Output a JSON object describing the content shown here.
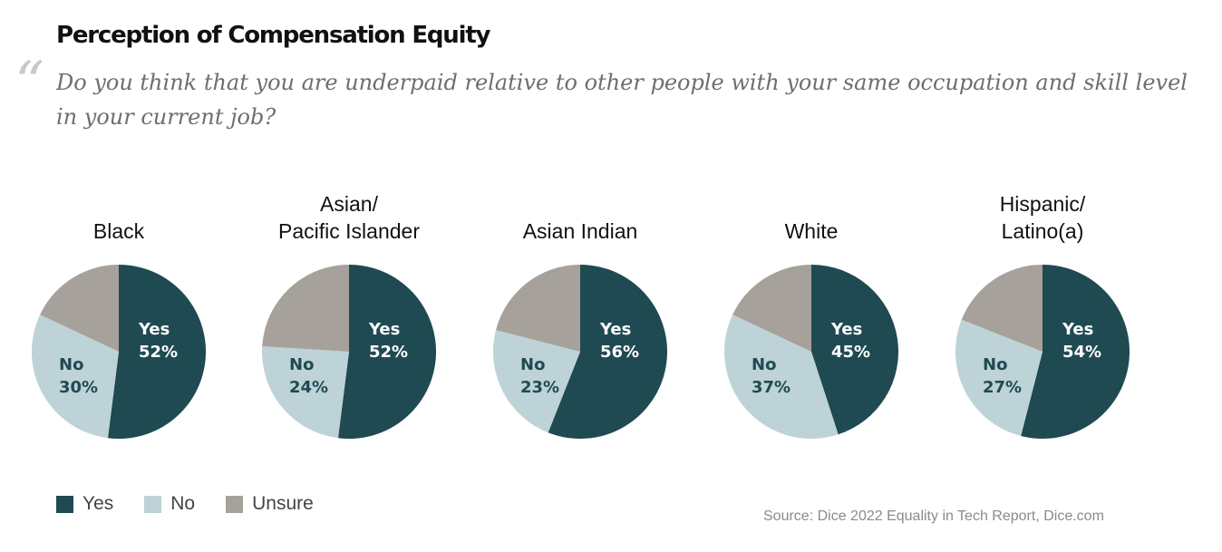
{
  "title": "Perception of Compensation Equity",
  "quote_mark": "“",
  "question": "Do you think that you are underpaid relative to other people with your same occupation and skill level in your current job?",
  "source": "Source: Dice 2022 Equality in Tech Report, Dice.com",
  "colors": {
    "yes": "#1f4a52",
    "no": "#bed3d7",
    "unsure": "#a6a19a"
  },
  "legend": [
    {
      "key": "yes",
      "label": "Yes"
    },
    {
      "key": "no",
      "label": "No"
    },
    {
      "key": "unsure",
      "label": "Unsure"
    }
  ],
  "chart_data": [
    {
      "type": "pie",
      "title_lines": [
        "Black"
      ],
      "categories": [
        "Yes",
        "No",
        "Unsure"
      ],
      "values": [
        52,
        30,
        18
      ],
      "labels": [
        "Yes\n52%",
        "No\n30%",
        ""
      ]
    },
    {
      "type": "pie",
      "title_lines": [
        "Asian/",
        "Pacific Islander"
      ],
      "categories": [
        "Yes",
        "No",
        "Unsure"
      ],
      "values": [
        52,
        24,
        24
      ],
      "labels": [
        "Yes\n52%",
        "No\n24%",
        ""
      ]
    },
    {
      "type": "pie",
      "title_lines": [
        "Asian Indian"
      ],
      "categories": [
        "Yes",
        "No",
        "Unsure"
      ],
      "values": [
        56,
        23,
        21
      ],
      "labels": [
        "Yes\n56%",
        "No\n23%",
        ""
      ]
    },
    {
      "type": "pie",
      "title_lines": [
        "White"
      ],
      "categories": [
        "Yes",
        "No",
        "Unsure"
      ],
      "values": [
        45,
        37,
        18
      ],
      "labels": [
        "Yes\n45%",
        "No\n37%",
        ""
      ]
    },
    {
      "type": "pie",
      "title_lines": [
        "Hispanic/",
        "Latino(a)"
      ],
      "categories": [
        "Yes",
        "No",
        "Unsure"
      ],
      "values": [
        54,
        27,
        19
      ],
      "labels": [
        "Yes\n54%",
        "No\n27%",
        ""
      ]
    }
  ]
}
